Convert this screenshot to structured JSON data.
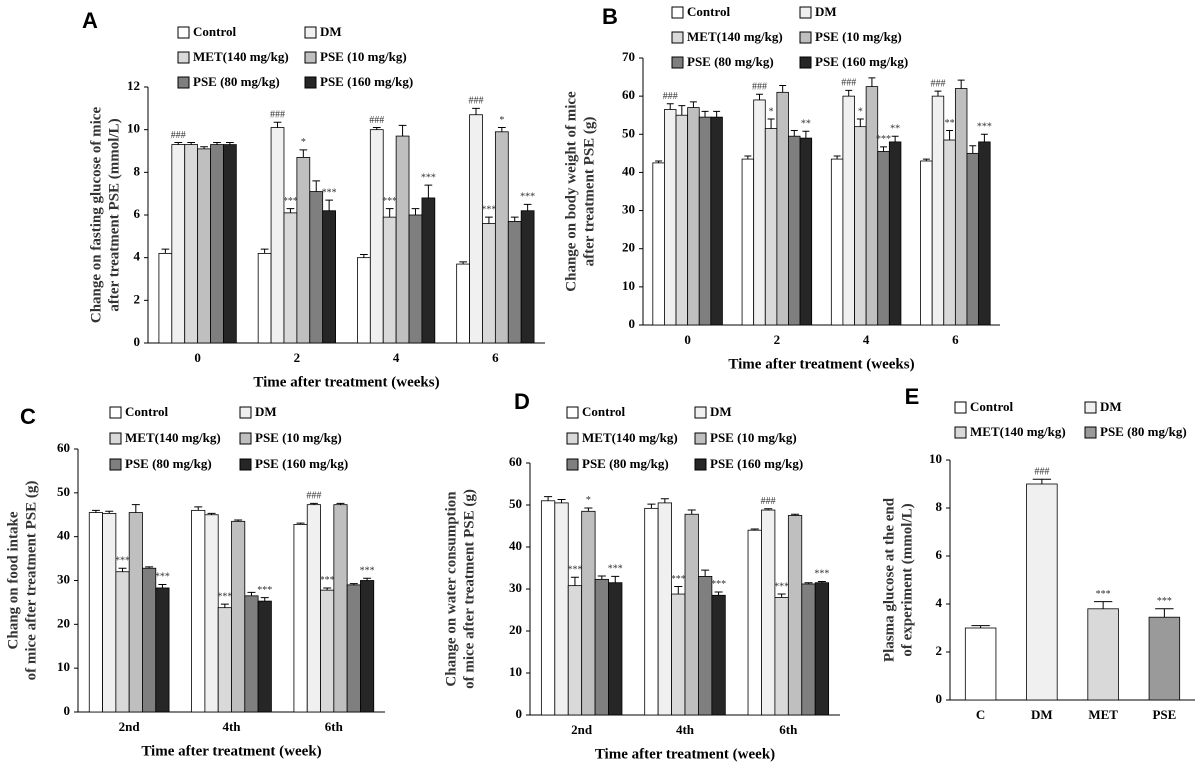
{
  "chart_data": [
    {
      "type": "bar",
      "title": "A",
      "ylabel": [
        "Change on fasting glucose of mice",
        "after  treatment PSE (mmol/L)"
      ],
      "xlabel": "Time after treatment (weeks)",
      "categories": [
        "0",
        "2",
        "4",
        "6"
      ],
      "ylim": [
        0,
        12
      ],
      "yticks": [
        0,
        2,
        4,
        6,
        8,
        10,
        12
      ],
      "series": [
        {
          "name": "Control",
          "color": "#ffffff",
          "values": [
            4.2,
            4.2,
            4.0,
            3.7
          ],
          "errors": [
            0.2,
            0.2,
            0.15,
            0.1
          ],
          "annotations": [
            null,
            null,
            null,
            null
          ]
        },
        {
          "name": "DM",
          "color": "#f0f0f0",
          "values": [
            9.3,
            10.1,
            10.0,
            10.7
          ],
          "errors": [
            0.1,
            0.25,
            0.1,
            0.3
          ],
          "annotations": [
            "###",
            "###",
            "###",
            "###"
          ]
        },
        {
          "name": "MET(140 mg/kg)",
          "color": "#d9d9d9",
          "values": [
            9.3,
            6.1,
            5.9,
            5.6
          ],
          "errors": [
            0.1,
            0.2,
            0.4,
            0.3
          ],
          "annotations": [
            null,
            "***",
            "***",
            "***"
          ]
        },
        {
          "name": "PSE (10 mg/kg)",
          "color": "#bfbfbf",
          "values": [
            9.1,
            8.7,
            9.7,
            9.9
          ],
          "errors": [
            0.1,
            0.35,
            0.5,
            0.2
          ],
          "annotations": [
            null,
            "*",
            null,
            "*"
          ]
        },
        {
          "name": "PSE (80 mg/kg)",
          "color": "#7f7f7f",
          "values": [
            9.3,
            7.1,
            6.0,
            5.7
          ],
          "errors": [
            0.1,
            0.5,
            0.3,
            0.2
          ],
          "annotations": [
            null,
            null,
            null,
            null
          ]
        },
        {
          "name": "PSE (160 mg/kg)",
          "color": "#262626",
          "values": [
            9.3,
            6.2,
            6.8,
            6.2
          ],
          "errors": [
            0.1,
            0.5,
            0.6,
            0.3
          ],
          "annotations": [
            null,
            "***",
            "***",
            "***"
          ]
        }
      ]
    },
    {
      "type": "bar",
      "title": "B",
      "ylabel": [
        "Change on body weight of mice",
        "after  treatment PSE (g)"
      ],
      "xlabel": "Time after treatment (weeks)",
      "categories": [
        "0",
        "2",
        "4",
        "6"
      ],
      "ylim": [
        0,
        70
      ],
      "yticks": [
        0,
        10,
        20,
        30,
        40,
        50,
        60,
        70
      ],
      "series": [
        {
          "name": "Control",
          "color": "#ffffff",
          "values": [
            42.5,
            43.5,
            43.5,
            43
          ],
          "errors": [
            0.5,
            0.8,
            0.8,
            0.5
          ],
          "annotations": [
            null,
            null,
            null,
            null
          ]
        },
        {
          "name": "DM",
          "color": "#f0f0f0",
          "values": [
            56.5,
            59,
            60,
            60
          ],
          "errors": [
            1.5,
            1.5,
            1.5,
            1.3
          ],
          "annotations": [
            "###",
            "###",
            "###",
            "###"
          ]
        },
        {
          "name": "MET(140 mg/kg)",
          "color": "#d9d9d9",
          "values": [
            55,
            51.5,
            52,
            48.5
          ],
          "errors": [
            2.5,
            2.5,
            2,
            2.5
          ],
          "annotations": [
            null,
            "*",
            "*",
            "**"
          ]
        },
        {
          "name": "PSE (10 mg/kg)",
          "color": "#bfbfbf",
          "values": [
            57,
            61,
            62.5,
            62
          ],
          "errors": [
            1.5,
            1.8,
            2.3,
            2.2
          ],
          "annotations": [
            null,
            null,
            null,
            null
          ]
        },
        {
          "name": "PSE (80 mg/kg)",
          "color": "#7f7f7f",
          "values": [
            54.5,
            49.5,
            45.5,
            45
          ],
          "errors": [
            1.5,
            1.5,
            1.2,
            2
          ],
          "annotations": [
            null,
            null,
            "***",
            null
          ]
        },
        {
          "name": "PSE (160 mg/kg)",
          "color": "#262626",
          "values": [
            54.5,
            49,
            48,
            48
          ],
          "errors": [
            1.5,
            1.8,
            1.5,
            2
          ],
          "annotations": [
            null,
            "**",
            "**",
            "***"
          ]
        }
      ]
    },
    {
      "type": "bar",
      "title": "C",
      "ylabel": [
        "Chang on food intake",
        "of mice  after treatment PSE (g)"
      ],
      "xlabel": "Time after treatment (week)",
      "categories": [
        "2nd",
        "4th",
        "6th"
      ],
      "ylim": [
        0,
        60
      ],
      "yticks": [
        0,
        10,
        20,
        30,
        40,
        50,
        60
      ],
      "series": [
        {
          "name": "Control",
          "color": "#ffffff",
          "values": [
            45.5,
            46,
            42.8
          ],
          "errors": [
            0.5,
            0.8,
            0.3
          ],
          "annotations": [
            null,
            null,
            null
          ]
        },
        {
          "name": "DM",
          "color": "#f0f0f0",
          "values": [
            45.3,
            45,
            47.3
          ],
          "errors": [
            0.5,
            0.3,
            0.3
          ],
          "annotations": [
            null,
            null,
            "###"
          ]
        },
        {
          "name": "MET(140 mg/kg)",
          "color": "#d9d9d9",
          "values": [
            32,
            23.8,
            27.8
          ],
          "errors": [
            0.8,
            0.8,
            0.5
          ],
          "annotations": [
            "***",
            "***",
            "***"
          ]
        },
        {
          "name": "PSE (10 mg/kg)",
          "color": "#bfbfbf",
          "values": [
            45.5,
            43.5,
            47.3
          ],
          "errors": [
            1.8,
            0.3,
            0.3
          ],
          "annotations": [
            null,
            null,
            null
          ]
        },
        {
          "name": "PSE (80 mg/kg)",
          "color": "#7f7f7f",
          "values": [
            32.8,
            26.5,
            29
          ],
          "errors": [
            0.3,
            0.8,
            0.3
          ],
          "annotations": [
            null,
            null,
            null
          ]
        },
        {
          "name": "PSE (160 mg/kg)",
          "color": "#262626",
          "values": [
            28.3,
            25.3,
            30
          ],
          "errors": [
            0.8,
            0.8,
            0.5
          ],
          "annotations": [
            "***",
            "***",
            "***"
          ]
        }
      ]
    },
    {
      "type": "bar",
      "title": "D",
      "ylabel": [
        "Change  on water  consumption",
        "of mice  after treatment PSE (g)"
      ],
      "xlabel": "Time after treatment (week)",
      "categories": [
        "2nd",
        "4th",
        "6th"
      ],
      "ylim": [
        0,
        60
      ],
      "yticks": [
        0,
        10,
        20,
        30,
        40,
        50,
        60
      ],
      "series": [
        {
          "name": "Control",
          "color": "#ffffff",
          "values": [
            51,
            49.2,
            44
          ],
          "errors": [
            1,
            1,
            0.3
          ],
          "annotations": [
            null,
            null,
            null
          ]
        },
        {
          "name": "DM",
          "color": "#f0f0f0",
          "values": [
            50.5,
            50.5,
            48.8
          ],
          "errors": [
            0.8,
            1,
            0.3
          ],
          "annotations": [
            null,
            null,
            "###"
          ]
        },
        {
          "name": "MET(140 mg/kg)",
          "color": "#d9d9d9",
          "values": [
            30.8,
            28.8,
            28
          ],
          "errors": [
            2,
            1.8,
            0.8
          ],
          "annotations": [
            "***",
            "***",
            "***"
          ]
        },
        {
          "name": "PSE (10 mg/kg)",
          "color": "#bfbfbf",
          "values": [
            48.5,
            47.8,
            47.5
          ],
          "errors": [
            0.8,
            1,
            0.3
          ],
          "annotations": [
            "*",
            null,
            null
          ]
        },
        {
          "name": "PSE (80 mg/kg)",
          "color": "#7f7f7f",
          "values": [
            32.3,
            33,
            31.2
          ],
          "errors": [
            0.8,
            1.5,
            0.3
          ],
          "annotations": [
            null,
            null,
            null
          ]
        },
        {
          "name": "PSE (160 mg/kg)",
          "color": "#262626",
          "values": [
            31.5,
            28.5,
            31.5
          ],
          "errors": [
            1.5,
            0.8,
            0.3
          ],
          "annotations": [
            "***",
            "***",
            "***"
          ]
        }
      ]
    },
    {
      "type": "bar",
      "title": "E",
      "ylabel": [
        "Plasma glucose at the end",
        "of experiment (mmol/L)"
      ],
      "legend": [
        {
          "name": "Control",
          "color": "#ffffff"
        },
        {
          "name": "DM",
          "color": "#f0f0f0"
        },
        {
          "name": "MET(140 mg/kg)",
          "color": "#d9d9d9"
        },
        {
          "name": "PSE (80 mg/kg)",
          "color": "#9a9a9a"
        }
      ],
      "categories": [
        "C",
        "DM",
        "MET",
        "PSE"
      ],
      "ylim": [
        0,
        10
      ],
      "yticks": [
        0,
        2,
        4,
        6,
        8,
        10
      ],
      "values": [
        3.0,
        9.0,
        3.8,
        3.45
      ],
      "errors": [
        0.1,
        0.2,
        0.3,
        0.35
      ],
      "colors": [
        "#ffffff",
        "#f0f0f0",
        "#d9d9d9",
        "#9a9a9a"
      ],
      "annotations": [
        null,
        "###",
        "***",
        "***"
      ]
    }
  ]
}
